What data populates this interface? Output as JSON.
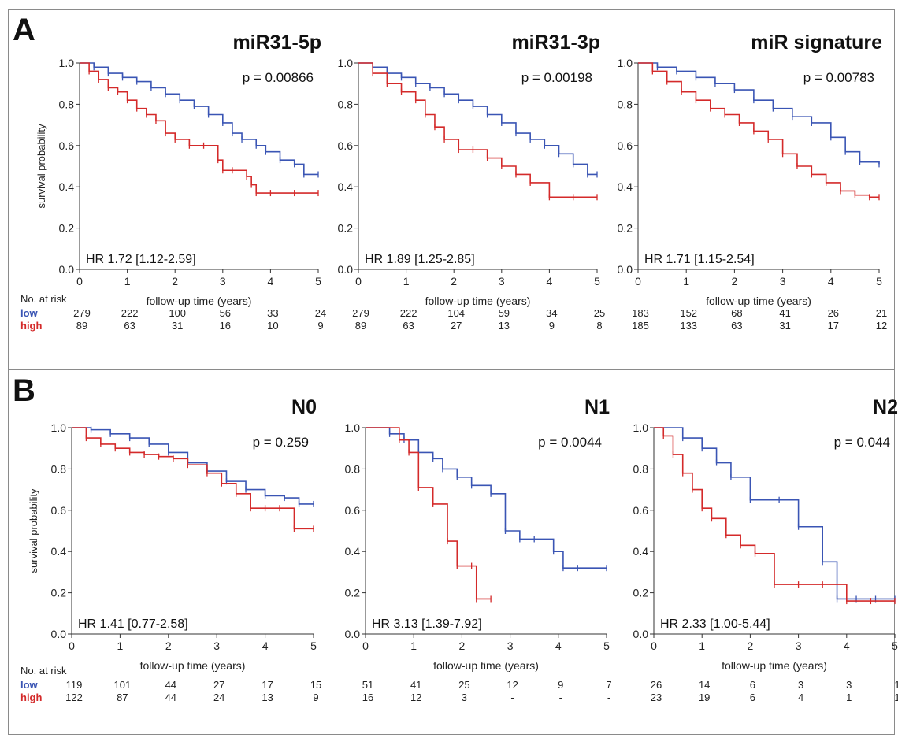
{
  "panels": [
    {
      "letter": "A"
    },
    {
      "letter": "B"
    }
  ],
  "colors": {
    "low": "#3a55b4",
    "high": "#d42a2a",
    "axis": "#333333"
  },
  "risk_table": {
    "header": "No. at risk",
    "low_label": "low",
    "high_label": "high"
  },
  "chart_data": [
    {
      "type": "line",
      "panel": "A",
      "title": "miR31-5p",
      "pvalue": "p = 0.00866",
      "hr": "HR 1.72 [1.12-2.59]",
      "xlabel": "follow-up time (years)",
      "ylabel": "survival probability",
      "xlim": [
        0,
        5
      ],
      "ylim": [
        0,
        1
      ],
      "xticks": [
        "0",
        "1",
        "2",
        "3",
        "4",
        "5"
      ],
      "yticks": [
        "0.0",
        "0.2",
        "0.4",
        "0.6",
        "0.8",
        "1.0"
      ],
      "series": [
        {
          "name": "low",
          "x": [
            0,
            0.3,
            0.6,
            0.9,
            1.2,
            1.5,
            1.8,
            2.1,
            2.4,
            2.7,
            3.0,
            3.2,
            3.4,
            3.7,
            3.9,
            4.2,
            4.5,
            4.7,
            5.0
          ],
          "y": [
            1.0,
            0.98,
            0.95,
            0.93,
            0.91,
            0.88,
            0.85,
            0.82,
            0.79,
            0.75,
            0.71,
            0.66,
            0.63,
            0.6,
            0.57,
            0.53,
            0.51,
            0.46,
            0.46
          ]
        },
        {
          "name": "high",
          "x": [
            0,
            0.2,
            0.4,
            0.6,
            0.8,
            1.0,
            1.2,
            1.4,
            1.6,
            1.8,
            2.0,
            2.3,
            2.6,
            2.9,
            3.0,
            3.2,
            3.5,
            3.6,
            3.7,
            4.0,
            4.5,
            5.0
          ],
          "y": [
            1.0,
            0.96,
            0.92,
            0.88,
            0.86,
            0.82,
            0.78,
            0.75,
            0.72,
            0.66,
            0.63,
            0.6,
            0.6,
            0.53,
            0.48,
            0.48,
            0.45,
            0.41,
            0.37,
            0.37,
            0.37,
            0.37
          ]
        }
      ],
      "risk": {
        "low": [
          "279",
          "222",
          "100",
          "56",
          "33",
          "24"
        ],
        "high": [
          "89",
          "63",
          "31",
          "16",
          "10",
          "9"
        ]
      }
    },
    {
      "type": "line",
      "panel": "A",
      "title": "miR31-3p",
      "pvalue": "p = 0.00198",
      "hr": "HR 1.89 [1.25-2.85]",
      "xlabel": "follow-up time (years)",
      "ylabel": "",
      "xlim": [
        0,
        5
      ],
      "ylim": [
        0,
        1
      ],
      "xticks": [
        "0",
        "1",
        "2",
        "3",
        "4",
        "5"
      ],
      "yticks": [
        "0.0",
        "0.2",
        "0.4",
        "0.6",
        "0.8",
        "1.0"
      ],
      "series": [
        {
          "name": "low",
          "x": [
            0,
            0.3,
            0.6,
            0.9,
            1.2,
            1.5,
            1.8,
            2.1,
            2.4,
            2.7,
            3.0,
            3.3,
            3.6,
            3.9,
            4.2,
            4.5,
            4.8,
            5.0
          ],
          "y": [
            1.0,
            0.98,
            0.95,
            0.93,
            0.9,
            0.88,
            0.85,
            0.82,
            0.79,
            0.75,
            0.71,
            0.66,
            0.63,
            0.6,
            0.56,
            0.51,
            0.46,
            0.46
          ]
        },
        {
          "name": "high",
          "x": [
            0,
            0.3,
            0.6,
            0.9,
            1.2,
            1.4,
            1.6,
            1.8,
            2.1,
            2.4,
            2.7,
            3.0,
            3.3,
            3.6,
            4.0,
            4.5,
            5.0
          ],
          "y": [
            1.0,
            0.95,
            0.9,
            0.86,
            0.82,
            0.75,
            0.69,
            0.63,
            0.58,
            0.58,
            0.54,
            0.5,
            0.46,
            0.42,
            0.35,
            0.35,
            0.35
          ]
        }
      ],
      "risk": {
        "low": [
          "279",
          "222",
          "104",
          "59",
          "34",
          "25"
        ],
        "high": [
          "89",
          "63",
          "27",
          "13",
          "9",
          "8"
        ]
      }
    },
    {
      "type": "line",
      "panel": "A",
      "title": "miR signature",
      "pvalue": "p = 0.00783",
      "hr": "HR 1.71 [1.15-2.54]",
      "xlabel": "follow-up time (years)",
      "ylabel": "",
      "xlim": [
        0,
        5
      ],
      "ylim": [
        0,
        1
      ],
      "xticks": [
        "0",
        "1",
        "2",
        "3",
        "4",
        "5"
      ],
      "yticks": [
        "0.0",
        "0.2",
        "0.4",
        "0.6",
        "0.8",
        "1.0"
      ],
      "series": [
        {
          "name": "low",
          "x": [
            0,
            0.4,
            0.8,
            1.2,
            1.6,
            2.0,
            2.4,
            2.8,
            3.2,
            3.6,
            4.0,
            4.3,
            4.6,
            5.0
          ],
          "y": [
            1.0,
            0.98,
            0.96,
            0.93,
            0.9,
            0.87,
            0.82,
            0.78,
            0.74,
            0.71,
            0.64,
            0.57,
            0.52,
            0.51
          ]
        },
        {
          "name": "high",
          "x": [
            0,
            0.3,
            0.6,
            0.9,
            1.2,
            1.5,
            1.8,
            2.1,
            2.4,
            2.7,
            3.0,
            3.3,
            3.6,
            3.9,
            4.2,
            4.5,
            4.8,
            5.0
          ],
          "y": [
            1.0,
            0.96,
            0.91,
            0.86,
            0.82,
            0.78,
            0.75,
            0.71,
            0.67,
            0.63,
            0.56,
            0.5,
            0.46,
            0.42,
            0.38,
            0.36,
            0.35,
            0.35
          ]
        }
      ],
      "risk": {
        "low": [
          "183",
          "152",
          "68",
          "41",
          "26",
          "21"
        ],
        "high": [
          "185",
          "133",
          "63",
          "31",
          "17",
          "12"
        ]
      }
    },
    {
      "type": "line",
      "panel": "B",
      "title": "N0",
      "pvalue": "p = 0.259",
      "hr": "HR 1.41 [0.77-2.58]",
      "xlabel": "follow-up time (years)",
      "ylabel": "survival probability",
      "xlim": [
        0,
        5
      ],
      "ylim": [
        0,
        1
      ],
      "xticks": [
        "0",
        "1",
        "2",
        "3",
        "4",
        "5"
      ],
      "yticks": [
        "0.0",
        "0.2",
        "0.4",
        "0.6",
        "0.8",
        "1.0"
      ],
      "series": [
        {
          "name": "low",
          "x": [
            0,
            0.4,
            0.8,
            1.2,
            1.6,
            2.0,
            2.4,
            2.8,
            3.2,
            3.6,
            4.0,
            4.4,
            4.7,
            5.0
          ],
          "y": [
            1.0,
            0.99,
            0.97,
            0.95,
            0.92,
            0.88,
            0.83,
            0.79,
            0.74,
            0.7,
            0.67,
            0.66,
            0.63,
            0.63
          ]
        },
        {
          "name": "high",
          "x": [
            0,
            0.3,
            0.6,
            0.9,
            1.2,
            1.5,
            1.8,
            2.1,
            2.4,
            2.8,
            3.1,
            3.4,
            3.7,
            4.0,
            4.3,
            4.6,
            5.0
          ],
          "y": [
            1.0,
            0.95,
            0.92,
            0.9,
            0.88,
            0.87,
            0.86,
            0.85,
            0.82,
            0.78,
            0.73,
            0.68,
            0.61,
            0.61,
            0.61,
            0.51,
            0.51
          ]
        }
      ],
      "risk": {
        "low": [
          "119",
          "101",
          "44",
          "27",
          "17",
          "15"
        ],
        "high": [
          "122",
          "87",
          "44",
          "24",
          "13",
          "9"
        ]
      }
    },
    {
      "type": "line",
      "panel": "B",
      "title": "N1",
      "pvalue": "p = 0.0044",
      "hr": "HR 3.13 [1.39-7.92]",
      "xlabel": "follow-up time (years)",
      "ylabel": "",
      "xlim": [
        0,
        5
      ],
      "ylim": [
        0,
        1
      ],
      "xticks": [
        "0",
        "1",
        "2",
        "3",
        "4",
        "5"
      ],
      "yticks": [
        "0.0",
        "0.2",
        "0.4",
        "0.6",
        "0.8",
        "1.0"
      ],
      "series": [
        {
          "name": "low",
          "x": [
            0,
            0.5,
            0.8,
            1.1,
            1.4,
            1.6,
            1.9,
            2.2,
            2.6,
            2.9,
            3.2,
            3.5,
            3.9,
            4.1,
            4.4,
            5.0
          ],
          "y": [
            1.0,
            0.97,
            0.94,
            0.88,
            0.85,
            0.8,
            0.76,
            0.72,
            0.68,
            0.5,
            0.46,
            0.46,
            0.4,
            0.32,
            0.32,
            0.32
          ]
        },
        {
          "name": "high",
          "x": [
            0,
            0.7,
            0.9,
            1.1,
            1.4,
            1.7,
            1.9,
            2.2,
            2.3,
            2.6
          ],
          "y": [
            1.0,
            0.94,
            0.88,
            0.71,
            0.63,
            0.45,
            0.33,
            0.33,
            0.17,
            0.17
          ]
        }
      ],
      "risk": {
        "low": [
          "51",
          "41",
          "25",
          "12",
          "9",
          "7"
        ],
        "high": [
          "16",
          "12",
          "3",
          "-",
          "-",
          "-"
        ]
      }
    },
    {
      "type": "line",
      "panel": "B",
      "title": "N2",
      "pvalue": "p = 0.044",
      "hr": "HR 2.33 [1.00-5.44]",
      "xlabel": "follow-up time (years)",
      "ylabel": "",
      "xlim": [
        0,
        5
      ],
      "ylim": [
        0,
        1
      ],
      "xticks": [
        "0",
        "1",
        "2",
        "3",
        "4",
        "5"
      ],
      "yticks": [
        "0.0",
        "0.2",
        "0.4",
        "0.6",
        "0.8",
        "1.0"
      ],
      "series": [
        {
          "name": "low",
          "x": [
            0,
            0.6,
            1.0,
            1.3,
            1.6,
            2.0,
            2.6,
            3.0,
            3.5,
            3.8,
            4.2,
            4.6,
            5.0
          ],
          "y": [
            1.0,
            0.95,
            0.9,
            0.83,
            0.76,
            0.65,
            0.65,
            0.52,
            0.35,
            0.17,
            0.17,
            0.17,
            0.17
          ]
        },
        {
          "name": "high",
          "x": [
            0,
            0.2,
            0.4,
            0.6,
            0.8,
            1.0,
            1.2,
            1.5,
            1.8,
            2.1,
            2.5,
            3.0,
            3.5,
            4.0,
            4.5,
            5.0
          ],
          "y": [
            1.0,
            0.96,
            0.87,
            0.78,
            0.7,
            0.61,
            0.56,
            0.48,
            0.43,
            0.39,
            0.24,
            0.24,
            0.24,
            0.16,
            0.16,
            0.16
          ]
        }
      ],
      "risk": {
        "low": [
          "26",
          "14",
          "6",
          "3",
          "3",
          "1"
        ],
        "high": [
          "23",
          "19",
          "6",
          "4",
          "1",
          "1"
        ]
      }
    }
  ]
}
